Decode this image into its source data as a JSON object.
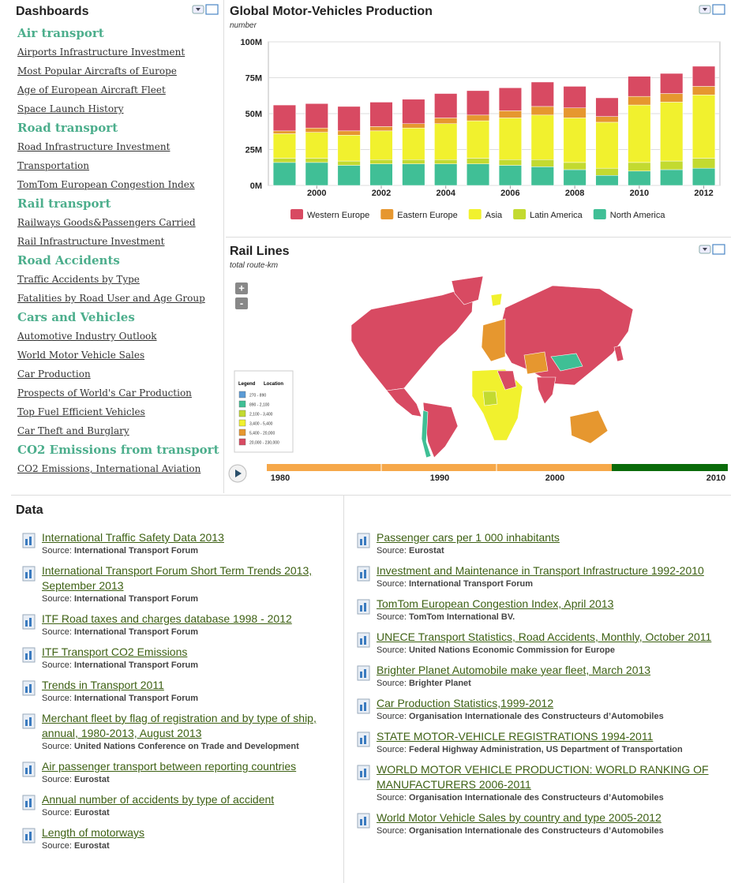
{
  "dashboards": {
    "title": "Dashboards",
    "groups": [
      {
        "title": "Air transport",
        "links": [
          "Airports Infrastructure Investment",
          "Most Popular Aircrafts of Europe",
          "Age of European Aircraft Fleet",
          "Space Launch History"
        ]
      },
      {
        "title": "Road transport",
        "links": [
          "Road Infrastructure Investment",
          "Transportation",
          "TomTom European Congestion Index"
        ]
      },
      {
        "title": "Rail transport",
        "links": [
          "Railways Goods&Passengers Carried",
          "Rail Infrastructure Investment"
        ]
      },
      {
        "title": "Road Accidents",
        "links": [
          "Traffic Accidents by Type",
          "Fatalities by Road User and Age Group"
        ]
      },
      {
        "title": "Cars and Vehicles",
        "links": [
          "Automotive Industry Outlook",
          "World Motor Vehicle Sales",
          "Car Production",
          "Prospects of World's Car Production",
          "Top Fuel Efficient Vehicles",
          "Car Theft and Burglary"
        ]
      },
      {
        "title": "CO2 Emissions from transport",
        "links": [
          "CO2 Emissions, International Aviation"
        ]
      }
    ]
  },
  "chart_data": {
    "type": "bar",
    "stacked": true,
    "title": "Global Motor-Vehicles Production",
    "subtitle": "number",
    "x": [
      1999,
      2000,
      2001,
      2002,
      2003,
      2004,
      2005,
      2006,
      2007,
      2008,
      2009,
      2010,
      2011,
      2012
    ],
    "xlim": [
      1998.5,
      2012.5
    ],
    "xticks": [
      2000,
      2002,
      2004,
      2006,
      2008,
      2010,
      2012
    ],
    "ylim": [
      0,
      100000000
    ],
    "yticks": [
      {
        "value": 0,
        "label": "0M"
      },
      {
        "value": 25000000,
        "label": "25M"
      },
      {
        "value": 50000000,
        "label": "50M"
      },
      {
        "value": 75000000,
        "label": "75M"
      },
      {
        "value": 100000000,
        "label": "100M"
      }
    ],
    "grid": true,
    "series": [
      {
        "name": "Western Europe",
        "color": "#d84a62",
        "values": [
          18000000,
          17000000,
          17000000,
          17000000,
          17000000,
          17000000,
          17000000,
          16000000,
          17000000,
          15000000,
          13000000,
          14000000,
          14000000,
          14000000
        ]
      },
      {
        "name": "Eastern Europe",
        "color": "#e6972f",
        "values": [
          2000000,
          3000000,
          3000000,
          3000000,
          3000000,
          4000000,
          4000000,
          5000000,
          6000000,
          7000000,
          4000000,
          6000000,
          6000000,
          6000000
        ]
      },
      {
        "name": "Asia",
        "color": "#f1f12e",
        "values": [
          17000000,
          18000000,
          18000000,
          20000000,
          22000000,
          25000000,
          26000000,
          29000000,
          31000000,
          31000000,
          32000000,
          40000000,
          41000000,
          44000000
        ]
      },
      {
        "name": "Latin America",
        "color": "#c3da30",
        "values": [
          3000000,
          3000000,
          3000000,
          3000000,
          3000000,
          3000000,
          4000000,
          4000000,
          5000000,
          5000000,
          5000000,
          6000000,
          6000000,
          7000000
        ]
      },
      {
        "name": "North America",
        "color": "#40bf96",
        "values": [
          16000000,
          16000000,
          14000000,
          15000000,
          15000000,
          15000000,
          15000000,
          14000000,
          13000000,
          11000000,
          7000000,
          10000000,
          11000000,
          12000000
        ]
      }
    ]
  },
  "map": {
    "title": "Rail Lines",
    "subtitle": "total route-km",
    "zoom": [
      "+",
      "-"
    ],
    "legend": {
      "title": [
        "Legend",
        "Location"
      ],
      "items": [
        {
          "label": "270 - 890",
          "color": "#5b9bd5"
        },
        {
          "label": "890 - 2,100",
          "color": "#3fbf95"
        },
        {
          "label": "2,100 - 3,400",
          "color": "#c3da30"
        },
        {
          "label": "3,400 - 5,400",
          "color": "#f1f12e"
        },
        {
          "label": "5,400 - 20,000",
          "color": "#e6972f"
        },
        {
          "label": "20,000 - 230,000",
          "color": "#d84a62"
        }
      ]
    },
    "timeline": [
      "1980",
      "1990",
      "2000",
      "2010"
    ]
  },
  "data": {
    "title": "Data",
    "source_prefix": "Source:",
    "columns": [
      [
        {
          "title": "International Traffic Safety Data 2013",
          "source": "International Transport Forum"
        },
        {
          "title": "International Transport Forum Short Term Trends 2013, September 2013",
          "source": "International Transport Forum"
        },
        {
          "title": "ITF Road taxes and charges database 1998 - 2012",
          "source": "International Transport Forum"
        },
        {
          "title": "ITF Transport CO2 Emissions",
          "source": "International Transport Forum"
        },
        {
          "title": "Trends in Transport 2011",
          "source": "International Transport Forum"
        },
        {
          "title": "Merchant fleet by flag of registration and by type of ship, annual, 1980-2013, August 2013",
          "source": "United Nations Conference on Trade and Development"
        },
        {
          "title": "Air passenger transport between reporting countries",
          "source": "Eurostat"
        },
        {
          "title": "Annual number of accidents by type of accident",
          "source": "Eurostat"
        },
        {
          "title": "Length of motorways",
          "source": "Eurostat"
        }
      ],
      [
        {
          "title": "Passenger cars per 1 000 inhabitants",
          "source": "Eurostat"
        },
        {
          "title": "Investment and Maintenance in Transport Infrastructure 1992-2010",
          "source": "International Transport Forum"
        },
        {
          "title": "TomTom European Congestion Index, April 2013",
          "source": "TomTom International BV."
        },
        {
          "title": "UNECE Transport Statistics, Road Accidents, Monthly, October 2011",
          "source": "United Nations Economic Commission for Europe"
        },
        {
          "title": "Brighter Planet Automobile make year fleet, March 2013",
          "source": "Brighter Planet"
        },
        {
          "title": "Car Production Statistics,1999-2012",
          "source": "Organisation Internationale des Constructeurs d’Automobiles"
        },
        {
          "title": "STATE MOTOR-VEHICLE REGISTRATIONS 1994-2011",
          "source": "Federal Highway Administration, US Department of Transportation"
        },
        {
          "title": "WORLD MOTOR VEHICLE PRODUCTION: WORLD RANKING OF MANUFACTURERS 2006-2011",
          "source": "Organisation Internationale des Constructeurs d’Automobiles"
        },
        {
          "title": "World Motor Vehicle Sales by country and type 2005-2012",
          "source": "Organisation Internationale des Constructeurs d’Automobiles"
        }
      ]
    ]
  }
}
